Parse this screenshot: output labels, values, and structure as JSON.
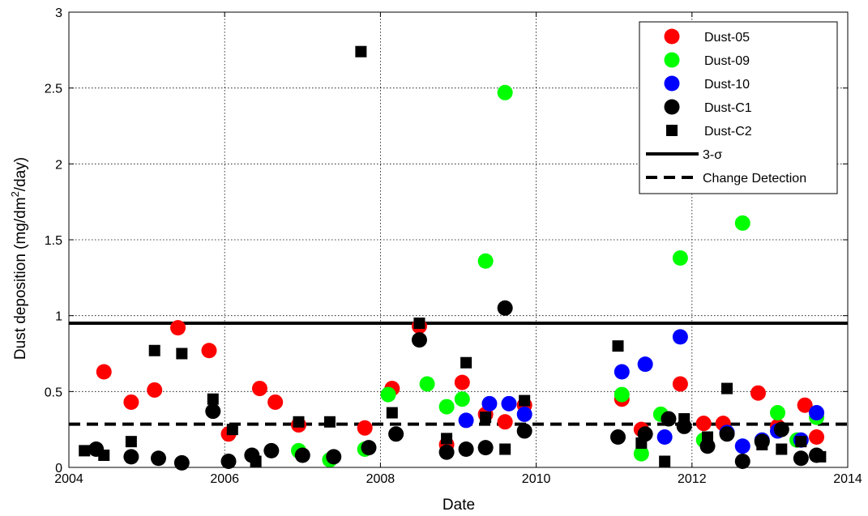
{
  "chart_data": {
    "type": "scatter",
    "xlabel": "Date",
    "ylabel_main": "Dust deposition (mg/dm",
    "ylabel_sup": "2",
    "ylabel_end": "/day)",
    "xlim": [
      2004,
      2014
    ],
    "ylim": [
      0,
      3
    ],
    "xticks": [
      "2004",
      "2006",
      "2008",
      "2010",
      "2012",
      "2014"
    ],
    "yticks": [
      "0",
      "0.5",
      "1",
      "1.5",
      "2",
      "2.5",
      "3"
    ],
    "grid": true,
    "legend_position": "top-right",
    "series": [
      {
        "name": "Dust-05",
        "marker": "circle",
        "color": "#ff0000",
        "points": [
          [
            2004.45,
            0.63
          ],
          [
            2004.8,
            0.43
          ],
          [
            2005.1,
            0.51
          ],
          [
            2005.4,
            0.92
          ],
          [
            2005.8,
            0.77
          ],
          [
            2006.05,
            0.22
          ],
          [
            2006.45,
            0.52
          ],
          [
            2006.65,
            0.43
          ],
          [
            2006.95,
            0.28
          ],
          [
            2007.8,
            0.26
          ],
          [
            2008.15,
            0.52
          ],
          [
            2008.5,
            0.93
          ],
          [
            2008.85,
            0.15
          ],
          [
            2009.05,
            0.56
          ],
          [
            2009.35,
            0.35
          ],
          [
            2009.6,
            0.3
          ],
          [
            2009.85,
            0.41
          ],
          [
            2011.1,
            0.45
          ],
          [
            2011.35,
            0.25
          ],
          [
            2011.85,
            0.55
          ],
          [
            2012.15,
            0.29
          ],
          [
            2012.4,
            0.29
          ],
          [
            2012.85,
            0.49
          ],
          [
            2013.1,
            0.27
          ],
          [
            2013.45,
            0.41
          ],
          [
            2013.6,
            0.2
          ]
        ]
      },
      {
        "name": "Dust-09",
        "marker": "circle",
        "color": "#00ff00",
        "points": [
          [
            2006.95,
            0.11
          ],
          [
            2007.35,
            0.05
          ],
          [
            2007.8,
            0.12
          ],
          [
            2008.1,
            0.48
          ],
          [
            2008.6,
            0.55
          ],
          [
            2008.85,
            0.4
          ],
          [
            2009.05,
            0.45
          ],
          [
            2009.35,
            1.36
          ],
          [
            2009.6,
            2.47
          ],
          [
            2011.1,
            0.48
          ],
          [
            2011.35,
            0.09
          ],
          [
            2011.6,
            0.35
          ],
          [
            2011.85,
            1.38
          ],
          [
            2012.15,
            0.18
          ],
          [
            2012.65,
            1.61
          ],
          [
            2012.9,
            0.17
          ],
          [
            2013.1,
            0.36
          ],
          [
            2013.35,
            0.18
          ],
          [
            2013.6,
            0.33
          ]
        ]
      },
      {
        "name": "Dust-10",
        "marker": "circle",
        "color": "#0000ff",
        "points": [
          [
            2009.1,
            0.31
          ],
          [
            2009.4,
            0.42
          ],
          [
            2009.65,
            0.42
          ],
          [
            2009.85,
            0.35
          ],
          [
            2011.1,
            0.63
          ],
          [
            2011.4,
            0.68
          ],
          [
            2011.65,
            0.2
          ],
          [
            2011.85,
            0.86
          ],
          [
            2012.45,
            0.23
          ],
          [
            2012.65,
            0.14
          ],
          [
            2012.9,
            0.18
          ],
          [
            2013.1,
            0.24
          ],
          [
            2013.4,
            0.18
          ],
          [
            2013.6,
            0.36
          ]
        ]
      },
      {
        "name": "Dust-C1",
        "marker": "circle",
        "color": "#000000",
        "points": [
          [
            2004.35,
            0.12
          ],
          [
            2004.8,
            0.07
          ],
          [
            2005.15,
            0.06
          ],
          [
            2005.45,
            0.03
          ],
          [
            2005.85,
            0.37
          ],
          [
            2006.05,
            0.04
          ],
          [
            2006.35,
            0.08
          ],
          [
            2006.6,
            0.11
          ],
          [
            2007.0,
            0.08
          ],
          [
            2007.4,
            0.07
          ],
          [
            2007.85,
            0.13
          ],
          [
            2008.2,
            0.22
          ],
          [
            2008.5,
            0.84
          ],
          [
            2008.85,
            0.1
          ],
          [
            2009.1,
            0.12
          ],
          [
            2009.35,
            0.13
          ],
          [
            2009.6,
            1.05
          ],
          [
            2009.85,
            0.24
          ],
          [
            2011.05,
            0.2
          ],
          [
            2011.4,
            0.22
          ],
          [
            2011.7,
            0.32
          ],
          [
            2011.9,
            0.27
          ],
          [
            2012.2,
            0.14
          ],
          [
            2012.45,
            0.22
          ],
          [
            2012.65,
            0.04
          ],
          [
            2012.9,
            0.17
          ],
          [
            2013.15,
            0.25
          ],
          [
            2013.4,
            0.06
          ],
          [
            2013.6,
            0.08
          ]
        ]
      },
      {
        "name": "Dust-C2",
        "marker": "square",
        "color": "#000000",
        "points": [
          [
            2004.2,
            0.11
          ],
          [
            2004.45,
            0.08
          ],
          [
            2004.8,
            0.17
          ],
          [
            2005.1,
            0.77
          ],
          [
            2005.45,
            0.75
          ],
          [
            2005.85,
            0.45
          ],
          [
            2006.1,
            0.25
          ],
          [
            2006.4,
            0.04
          ],
          [
            2006.95,
            0.3
          ],
          [
            2007.35,
            0.3
          ],
          [
            2007.75,
            2.74
          ],
          [
            2008.15,
            0.36
          ],
          [
            2008.5,
            0.95
          ],
          [
            2008.85,
            0.19
          ],
          [
            2009.1,
            0.69
          ],
          [
            2009.35,
            0.33
          ],
          [
            2009.6,
            0.12
          ],
          [
            2009.85,
            0.44
          ],
          [
            2011.05,
            0.8
          ],
          [
            2011.35,
            0.16
          ],
          [
            2011.65,
            0.04
          ],
          [
            2011.9,
            0.32
          ],
          [
            2012.2,
            0.2
          ],
          [
            2012.45,
            0.52
          ],
          [
            2012.9,
            0.15
          ],
          [
            2013.15,
            0.12
          ],
          [
            2013.4,
            0.17
          ],
          [
            2013.65,
            0.07
          ]
        ]
      }
    ],
    "reference_lines": [
      {
        "name": "3-σ",
        "y": 0.95,
        "style": "solid",
        "color": "#000000"
      },
      {
        "name": "Change Detection",
        "y": 0.285,
        "style": "dashed",
        "color": "#000000"
      }
    ]
  }
}
